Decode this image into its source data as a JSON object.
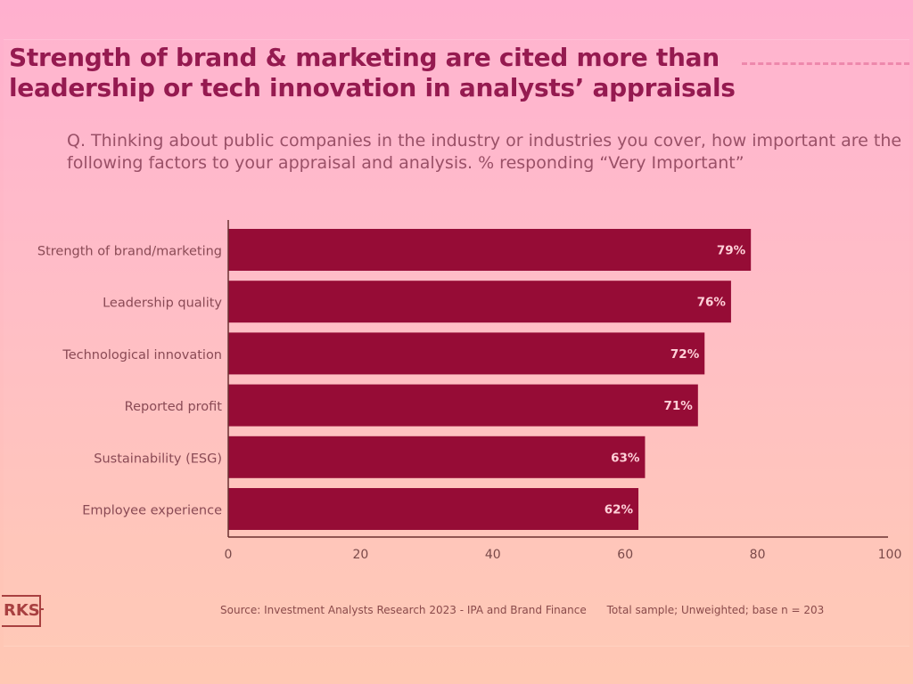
{
  "title": "Strength of brand & marketing are cited more than leadership or tech innovation in analysts’ appraisals",
  "question": "Q. Thinking about public companies in the industry or industries you cover, how important are the following factors to your appraisal and analysis. % responding “Very Important”",
  "source": "Source: Investment Analysts Research 2023 - IPA and Brand Finance",
  "sample_note": "Total sample; Unweighted; base n = 203",
  "logo_text": "RKS",
  "colors": {
    "bar": "#960c36",
    "bar_label": "#ffd0d8",
    "title": "#951a50",
    "axis": "#6a3030"
  },
  "chart_data": {
    "type": "bar",
    "orientation": "horizontal",
    "title": "Strength of brand & marketing are cited more than leadership or tech innovation in analysts’ appraisals",
    "xlabel": "",
    "ylabel": "",
    "categories": [
      "Strength of brand/marketing",
      "Leadership quality",
      "Technological innovation",
      "Reported profit",
      "Sustainability (ESG)",
      "Employee experience"
    ],
    "values": [
      79,
      76,
      72,
      71,
      63,
      62
    ],
    "data_labels": [
      "79%",
      "76%",
      "72%",
      "71%",
      "63%",
      "62%"
    ],
    "xlim": [
      0,
      100
    ],
    "x_ticks": [
      0,
      20,
      40,
      60,
      80,
      100
    ],
    "x_tick_labels": [
      "0",
      "20",
      "40",
      "60",
      "80",
      "100"
    ],
    "grid": false,
    "legend": "none"
  }
}
